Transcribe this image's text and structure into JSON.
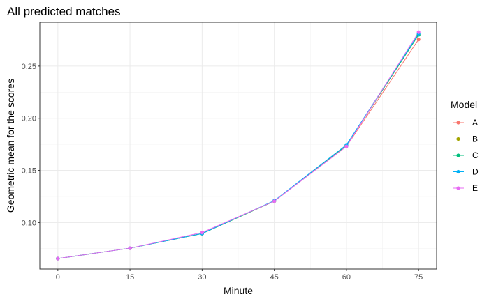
{
  "chart_data": {
    "type": "line",
    "title": "All predicted matches",
    "xlabel": "Minute",
    "ylabel": "Geometric mean for the scores",
    "x": [
      0,
      15,
      30,
      45,
      60,
      75
    ],
    "x_ticks": [
      "0",
      "15",
      "30",
      "45",
      "60",
      "75"
    ],
    "y_ticks": [
      {
        "value": 0.1,
        "label": "0,10"
      },
      {
        "value": 0.15,
        "label": "0,15"
      },
      {
        "value": 0.2,
        "label": "0,20"
      },
      {
        "value": 0.25,
        "label": "0,25"
      }
    ],
    "xlim": [
      -3.75,
      78.75
    ],
    "ylim": [
      0.0555,
      0.292
    ],
    "grid": true,
    "legend": {
      "title": "Model",
      "position": "right"
    },
    "series": [
      {
        "name": "A",
        "color": "#F8766D",
        "values": [
          0.0655,
          0.0755,
          0.0895,
          0.1205,
          0.173,
          0.2755
        ]
      },
      {
        "name": "B",
        "color": "#A3A500",
        "values": [
          0.0655,
          0.0755,
          0.0895,
          0.1205,
          0.174,
          0.28
        ]
      },
      {
        "name": "C",
        "color": "#00BF7D",
        "values": [
          0.0655,
          0.0755,
          0.0895,
          0.1205,
          0.174,
          0.28
        ]
      },
      {
        "name": "D",
        "color": "#00B0F6",
        "values": [
          0.0655,
          0.0755,
          0.0895,
          0.121,
          0.1745,
          0.281
        ]
      },
      {
        "name": "E",
        "color": "#E76BF3",
        "values": [
          0.0655,
          0.0755,
          0.0905,
          0.1205,
          0.173,
          0.2825
        ]
      }
    ]
  }
}
